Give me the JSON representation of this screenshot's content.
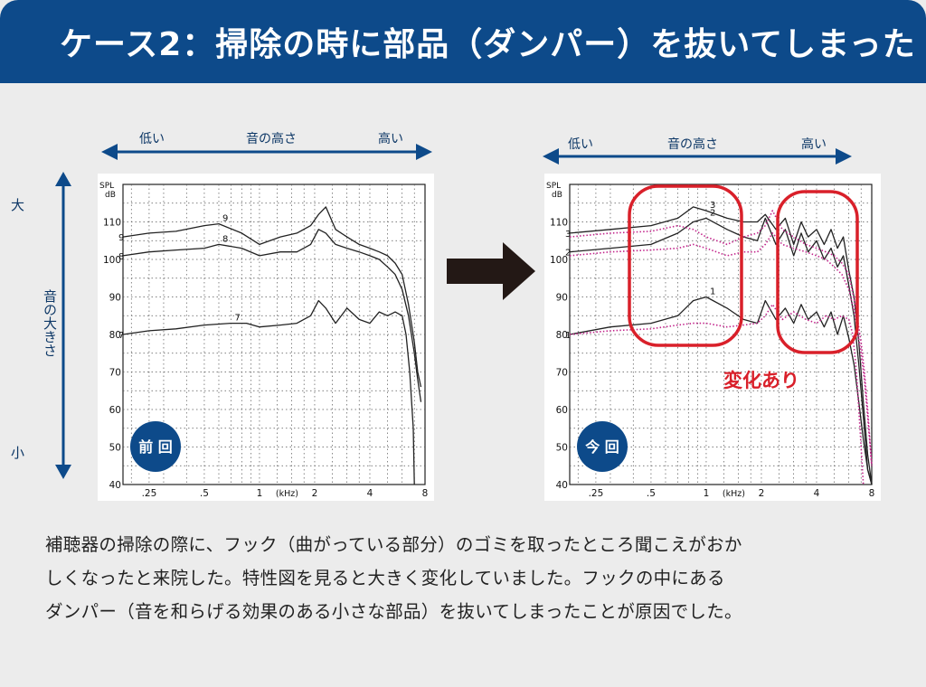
{
  "header": {
    "title": "ケース2：掃除の時に部品（ダンパー）を抜いてしまった"
  },
  "pitch_axis": {
    "low": "低い",
    "center": "音の高さ",
    "high": "高い"
  },
  "volume_axis": {
    "label": "音の大きさ",
    "high": "大",
    "low": "小"
  },
  "change_label": "変化あり",
  "description": {
    "line1": "補聴器の掃除の際に、フック（曲がっている部分）のゴミを取ったところ聞こえがおか",
    "line2": "しくなったと来院した。特性図を見ると大きく変化していました。フックの中にある",
    "line3": "ダンパー（音を和らげる効果のある小さな部品）を抜いてしまったことが原因でした。"
  },
  "colors": {
    "header": "#0d4a8a",
    "badge": "#0d4a8a",
    "highlight": "#d9202a",
    "dotted": "#c2248b",
    "arrow": "#231815"
  },
  "chart_data": [
    {
      "type": "line",
      "badge": "前 回",
      "ylabel": "SPL dB",
      "xlabel": "(kHz)",
      "xscale": "log",
      "xlim": [
        0.18,
        8
      ],
      "ylim": [
        40,
        120
      ],
      "x_ticks": [
        0.25,
        0.5,
        1,
        2,
        4,
        8
      ],
      "x_tick_labels": [
        ".25",
        ".5",
        "1",
        "2",
        "4",
        "8"
      ],
      "y_ticks": [
        40,
        50,
        60,
        70,
        80,
        90,
        100,
        110
      ],
      "series": [
        {
          "name": "9",
          "style": "solid",
          "x": [
            0.18,
            0.25,
            0.35,
            0.5,
            0.6,
            0.8,
            1.0,
            1.3,
            1.6,
            1.9,
            2.1,
            2.3,
            2.6,
            3.0,
            3.5,
            4.0,
            4.5,
            5.0,
            5.5,
            6.0,
            6.5,
            7.0,
            7.3,
            7.6
          ],
          "y": [
            106,
            107,
            107.5,
            109,
            109.5,
            107,
            104,
            106,
            107,
            109,
            112,
            114,
            108,
            106,
            104,
            103,
            102,
            101,
            99,
            96,
            88,
            78,
            70,
            66
          ]
        },
        {
          "name": "8",
          "style": "solid",
          "x": [
            0.18,
            0.25,
            0.35,
            0.5,
            0.6,
            0.8,
            1.0,
            1.3,
            1.6,
            1.9,
            2.1,
            2.3,
            2.6,
            3.0,
            3.5,
            4.0,
            4.5,
            5.0,
            5.5,
            6.0,
            6.5,
            7.0,
            7.3,
            7.6
          ],
          "y": [
            101,
            102,
            102.5,
            103,
            104,
            103,
            101,
            102,
            102,
            104,
            108,
            107,
            104,
            103,
            102,
            101,
            100,
            98,
            96,
            92,
            85,
            75,
            68,
            62
          ]
        },
        {
          "name": "7",
          "style": "solid",
          "x": [
            0.18,
            0.25,
            0.35,
            0.5,
            0.7,
            0.85,
            1.0,
            1.3,
            1.6,
            1.9,
            2.1,
            2.3,
            2.6,
            3.0,
            3.5,
            4.0,
            4.5,
            5.0,
            5.5,
            6.0,
            6.3,
            6.6,
            6.9,
            7.0
          ],
          "y": [
            80,
            81,
            81.5,
            82.5,
            83,
            83,
            82,
            82.5,
            83,
            85,
            89,
            87,
            83,
            87,
            84,
            83,
            86,
            85,
            86,
            85,
            80,
            70,
            55,
            40
          ]
        }
      ]
    },
    {
      "type": "line",
      "badge": "今 回",
      "ylabel": "SPL dB",
      "xlabel": "(kHz)",
      "xscale": "log",
      "xlim": [
        0.18,
        8
      ],
      "ylim": [
        40,
        120
      ],
      "x_ticks": [
        0.25,
        0.5,
        1,
        2,
        4,
        8
      ],
      "x_tick_labels": [
        ".25",
        ".5",
        "1",
        "2",
        "4",
        "8"
      ],
      "y_ticks": [
        40,
        50,
        60,
        70,
        80,
        90,
        100,
        110
      ],
      "series": [
        {
          "name": "3",
          "style": "solid",
          "x": [
            0.18,
            0.3,
            0.5,
            0.7,
            0.85,
            1.0,
            1.3,
            1.6,
            1.9,
            2.1,
            2.4,
            2.7,
            3.0,
            3.3,
            3.6,
            4.0,
            4.4,
            4.8,
            5.2,
            5.6,
            6.0,
            6.4,
            6.8,
            7.2,
            7.6,
            8.0
          ],
          "y": [
            107,
            108,
            109,
            111,
            114,
            113,
            111,
            110,
            110,
            112,
            108,
            111,
            104,
            110,
            106,
            108,
            104,
            108,
            103,
            106,
            97,
            90,
            78,
            62,
            48,
            40
          ]
        },
        {
          "name": "2",
          "style": "solid",
          "x": [
            0.18,
            0.3,
            0.5,
            0.7,
            0.85,
            1.0,
            1.3,
            1.6,
            1.9,
            2.1,
            2.4,
            2.7,
            3.0,
            3.3,
            3.6,
            4.0,
            4.4,
            4.8,
            5.2,
            5.6,
            6.0,
            6.4,
            6.8,
            7.2,
            7.6,
            8.0
          ],
          "y": [
            102,
            103,
            104,
            107,
            110,
            111,
            108,
            106,
            105,
            111,
            104,
            108,
            101,
            107,
            102,
            105,
            100,
            103,
            98,
            101,
            93,
            85,
            72,
            58,
            44,
            40
          ]
        },
        {
          "name": "1",
          "style": "solid",
          "x": [
            0.18,
            0.3,
            0.5,
            0.7,
            0.85,
            1.0,
            1.3,
            1.6,
            1.9,
            2.1,
            2.4,
            2.7,
            3.0,
            3.3,
            3.6,
            4.0,
            4.4,
            4.8,
            5.2,
            5.6,
            6.0,
            6.4,
            6.8,
            7.2,
            7.6,
            8.0
          ],
          "y": [
            80,
            82,
            83,
            85,
            89,
            90,
            87,
            84,
            83,
            89,
            84,
            87,
            83,
            88,
            84,
            86,
            82,
            86,
            80,
            85,
            79,
            72,
            62,
            52,
            44,
            40
          ]
        },
        {
          "name": "",
          "style": "dotted",
          "x": [
            0.18,
            0.3,
            0.5,
            0.7,
            0.85,
            1.0,
            1.3,
            1.6,
            1.9,
            2.1,
            2.3,
            2.6,
            3.0,
            3.5,
            4.0,
            4.5,
            5.0,
            5.5,
            6.0,
            6.5,
            7.0,
            7.3,
            7.6,
            8.0
          ],
          "y": [
            106,
            107,
            107.5,
            109,
            108,
            106,
            104,
            106,
            107,
            109,
            113,
            108,
            106,
            104,
            103,
            102,
            101,
            99,
            96,
            88,
            78,
            70,
            60,
            45
          ]
        },
        {
          "name": "",
          "style": "dotted",
          "x": [
            0.18,
            0.3,
            0.5,
            0.7,
            0.85,
            1.0,
            1.3,
            1.6,
            1.9,
            2.1,
            2.3,
            2.6,
            3.0,
            3.5,
            4.0,
            4.5,
            5.0,
            5.5,
            6.0,
            6.5,
            7.0,
            7.3,
            7.6,
            8.0
          ],
          "y": [
            101,
            102,
            102.5,
            103,
            104,
            103,
            101,
            102,
            102,
            104,
            107,
            104,
            103,
            102,
            101,
            100,
            98,
            96,
            92,
            85,
            75,
            68,
            58,
            45
          ]
        },
        {
          "name": "",
          "style": "dotted",
          "x": [
            0.18,
            0.3,
            0.5,
            0.7,
            0.85,
            1.0,
            1.3,
            1.6,
            1.9,
            2.1,
            2.3,
            2.6,
            3.0,
            3.5,
            4.0,
            4.5,
            5.0,
            5.5,
            6.0,
            6.3,
            6.6,
            6.9,
            7.2
          ],
          "y": [
            80,
            81,
            81.5,
            82.5,
            83,
            83,
            82,
            82.5,
            83,
            85,
            88,
            84,
            86,
            84,
            83,
            85,
            84,
            85,
            84,
            80,
            70,
            55,
            40
          ]
        }
      ]
    }
  ]
}
